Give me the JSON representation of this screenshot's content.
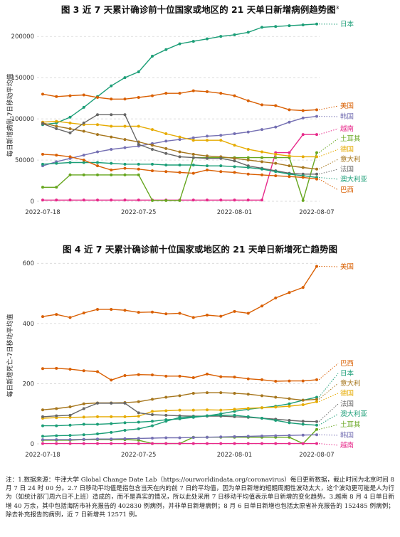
{
  "chart_data": [
    {
      "type": "line",
      "title": "图 3  近 7 天累计确诊前十位国家或地区的 21 天单日新增病例趋势图",
      "title_sup": "3",
      "ylabel": "每日新增病例-7日移动平均值",
      "xlabel": "",
      "x": [
        "2022-07-18",
        "2022-07-19",
        "2022-07-20",
        "2022-07-21",
        "2022-07-22",
        "2022-07-23",
        "2022-07-24",
        "2022-07-25",
        "2022-07-26",
        "2022-07-27",
        "2022-07-28",
        "2022-07-29",
        "2022-07-30",
        "2022-07-31",
        "2022-08-01",
        "2022-08-02",
        "2022-08-03",
        "2022-08-04",
        "2022-08-05",
        "2022-08-06",
        "2022-08-07"
      ],
      "x_ticks": [
        "2022-07-18",
        "2022-07-25",
        "2022-08-01",
        "2022-08-07"
      ],
      "y_ticks": [
        "0",
        "50000",
        "100000",
        "150000",
        "200000"
      ],
      "ylim": [
        0,
        220000
      ],
      "grid": true,
      "legend": "right",
      "series": [
        {
          "name": "日本",
          "color": "#1b9e77",
          "values": [
            93000,
            95000,
            102000,
            114000,
            127000,
            140000,
            150000,
            157000,
            176000,
            184000,
            191000,
            194000,
            197000,
            200000,
            202000,
            205000,
            211000,
            212000,
            213000,
            214000,
            215000
          ]
        },
        {
          "name": "美国",
          "color": "#d95f02",
          "values": [
            130000,
            127000,
            128000,
            129000,
            126000,
            124000,
            124000,
            126000,
            128000,
            131000,
            131000,
            134000,
            133000,
            131000,
            128000,
            122000,
            117000,
            116000,
            111000,
            110000,
            111000
          ]
        },
        {
          "name": "韩国",
          "color": "#7570b3",
          "values": [
            43000,
            48000,
            52000,
            56000,
            60000,
            63000,
            65000,
            67000,
            70000,
            73000,
            75000,
            77000,
            79000,
            80000,
            82000,
            84000,
            87000,
            90000,
            96000,
            101000,
            103000
          ]
        },
        {
          "name": "越南",
          "color": "#e7298a",
          "values": [
            1500,
            1500,
            1500,
            1500,
            1500,
            1500,
            1500,
            1500,
            1500,
            1500,
            1500,
            1500,
            1500,
            1500,
            1500,
            1500,
            1500,
            59000,
            59000,
            81000,
            81000
          ]
        },
        {
          "name": "土耳其",
          "color": "#66a61e",
          "values": [
            17000,
            17000,
            32000,
            32000,
            32000,
            32000,
            32000,
            32000,
            1000,
            1000,
            1000,
            53000,
            53000,
            53000,
            53000,
            53000,
            53000,
            53000,
            53000,
            1000,
            59000
          ]
        },
        {
          "name": "德国",
          "color": "#e6ab02",
          "values": [
            96000,
            97000,
            95000,
            93000,
            93000,
            91000,
            91000,
            91000,
            87000,
            82000,
            78000,
            74000,
            74000,
            74000,
            68000,
            63000,
            60000,
            57000,
            55000,
            54000,
            54000
          ]
        },
        {
          "name": "意大利",
          "color": "#a6761d",
          "values": [
            95000,
            91000,
            88000,
            85000,
            81000,
            78000,
            75000,
            72000,
            68000,
            64000,
            60000,
            57000,
            55000,
            54000,
            52000,
            50000,
            48000,
            46000,
            43000,
            41000,
            39000
          ]
        },
        {
          "name": "法国",
          "color": "#666666",
          "values": [
            94000,
            88000,
            83000,
            95000,
            105000,
            105000,
            105000,
            69000,
            63000,
            58000,
            54000,
            53000,
            52000,
            52000,
            49000,
            43000,
            40000,
            37000,
            34000,
            33000,
            33000
          ]
        },
        {
          "name": "澳大利亚",
          "color": "#1b9e77",
          "values": [
            45000,
            46000,
            47000,
            47000,
            47000,
            46000,
            45000,
            45000,
            45000,
            44000,
            44000,
            44000,
            43000,
            43000,
            42000,
            41000,
            39000,
            36000,
            33000,
            31000,
            29000
          ]
        },
        {
          "name": "巴西",
          "color": "#d95f02",
          "values": [
            57000,
            56000,
            54000,
            50000,
            43000,
            38000,
            40000,
            39000,
            37000,
            36000,
            35000,
            34000,
            38000,
            36000,
            35000,
            33000,
            32000,
            31000,
            30000,
            29000,
            27000
          ]
        }
      ]
    },
    {
      "type": "line",
      "title": "图 4  近 7 天累计确诊前十位国家或地区的 21 天单日新增死亡趋势图",
      "ylabel": "每日新增死亡-7日移动平均值",
      "xlabel": "",
      "x": [
        "2022-07-18",
        "2022-07-19",
        "2022-07-20",
        "2022-07-21",
        "2022-07-22",
        "2022-07-23",
        "2022-07-24",
        "2022-07-25",
        "2022-07-26",
        "2022-07-27",
        "2022-07-28",
        "2022-07-29",
        "2022-07-30",
        "2022-07-31",
        "2022-08-01",
        "2022-08-02",
        "2022-08-03",
        "2022-08-04",
        "2022-08-05",
        "2022-08-06",
        "2022-08-07"
      ],
      "x_ticks": [
        "2022-07-18",
        "2022-07-25",
        "2022-08-01",
        "2022-08-07"
      ],
      "y_ticks": [
        "0",
        "200",
        "400",
        "600"
      ],
      "ylim": [
        0,
        610
      ],
      "grid": true,
      "legend": "right",
      "series": [
        {
          "name": "美国",
          "color": "#d95f02",
          "values": [
            423,
            430,
            420,
            435,
            447,
            447,
            444,
            437,
            438,
            432,
            434,
            420,
            428,
            424,
            440,
            434,
            458,
            485,
            503,
            520,
            590
          ]
        },
        {
          "name": "巴西",
          "color": "#d95f02",
          "values": [
            250,
            251,
            248,
            243,
            240,
            212,
            227,
            230,
            229,
            225,
            225,
            220,
            232,
            223,
            222,
            216,
            213,
            208,
            209,
            209,
            213
          ]
        },
        {
          "name": "日本",
          "color": "#1b9e77",
          "values": [
            60,
            60,
            62,
            65,
            65,
            67,
            70,
            72,
            75,
            80,
            83,
            88,
            93,
            100,
            108,
            115,
            120,
            125,
            133,
            145,
            155
          ]
        },
        {
          "name": "意大利",
          "color": "#a6761d",
          "values": [
            113,
            117,
            123,
            133,
            136,
            136,
            137,
            140,
            148,
            155,
            160,
            168,
            170,
            170,
            168,
            165,
            160,
            155,
            150,
            145,
            148
          ]
        },
        {
          "name": "德国",
          "color": "#e6ab02",
          "values": [
            85,
            87,
            88,
            89,
            90,
            90,
            90,
            92,
            108,
            110,
            112,
            112,
            113,
            112,
            115,
            118,
            120,
            122,
            125,
            130,
            140
          ]
        },
        {
          "name": "法国",
          "color": "#666666",
          "values": [
            90,
            93,
            95,
            117,
            135,
            135,
            135,
            103,
            97,
            95,
            93,
            92,
            92,
            92,
            90,
            88,
            85,
            82,
            78,
            75,
            74
          ]
        },
        {
          "name": "澳大利亚",
          "color": "#1b9e77",
          "values": [
            25,
            27,
            28,
            30,
            33,
            38,
            45,
            50,
            60,
            75,
            88,
            90,
            93,
            95,
            95,
            90,
            85,
            78,
            70,
            65,
            62
          ]
        },
        {
          "name": "土耳其",
          "color": "#66a61e",
          "values": [
            12,
            12,
            12,
            14,
            14,
            14,
            14,
            12,
            1,
            1,
            1,
            22,
            22,
            22,
            22,
            22,
            22,
            22,
            22,
            1,
            48
          ]
        },
        {
          "name": "韩国",
          "color": "#7570b3",
          "values": [
            14,
            14,
            14,
            15,
            16,
            16,
            17,
            18,
            19,
            20,
            20,
            21,
            22,
            23,
            24,
            25,
            26,
            27,
            28,
            29,
            30
          ]
        },
        {
          "name": "越南",
          "color": "#e7298a",
          "values": [
            1,
            1,
            1,
            1,
            1,
            1,
            1,
            1,
            1,
            1,
            1,
            1,
            1,
            1,
            1,
            1,
            1,
            1,
            1,
            1,
            1
          ]
        }
      ]
    }
  ],
  "footnote": "注：1.数据来源：牛津大学 Global Change Date Lab（https://ourworldindata.org/coronavirus）每日更新数据，截止时间为北京时间 8 月 7 日 24 时 00 分。2.7 日移动平均值是指包含当天在内的前 7 日的平均值，因为单日新增的短期周期性波动太大，这个波动更可能是人为行为（如统计部门周六日不上班）造成的，而不是真实的情况，所以此处采用 7 日移动平均值表示单日新增的变化趋势。3.越南 8 月 4 日单日新增 40 万余，其中包括海防市补充报告的 402830 例病例，并非单日新增病例；8 月 6 日单日新增也包括太原省补充报告的 152485 例病例；除去补充报告的病例，近 7 日新增共 12571 例。"
}
